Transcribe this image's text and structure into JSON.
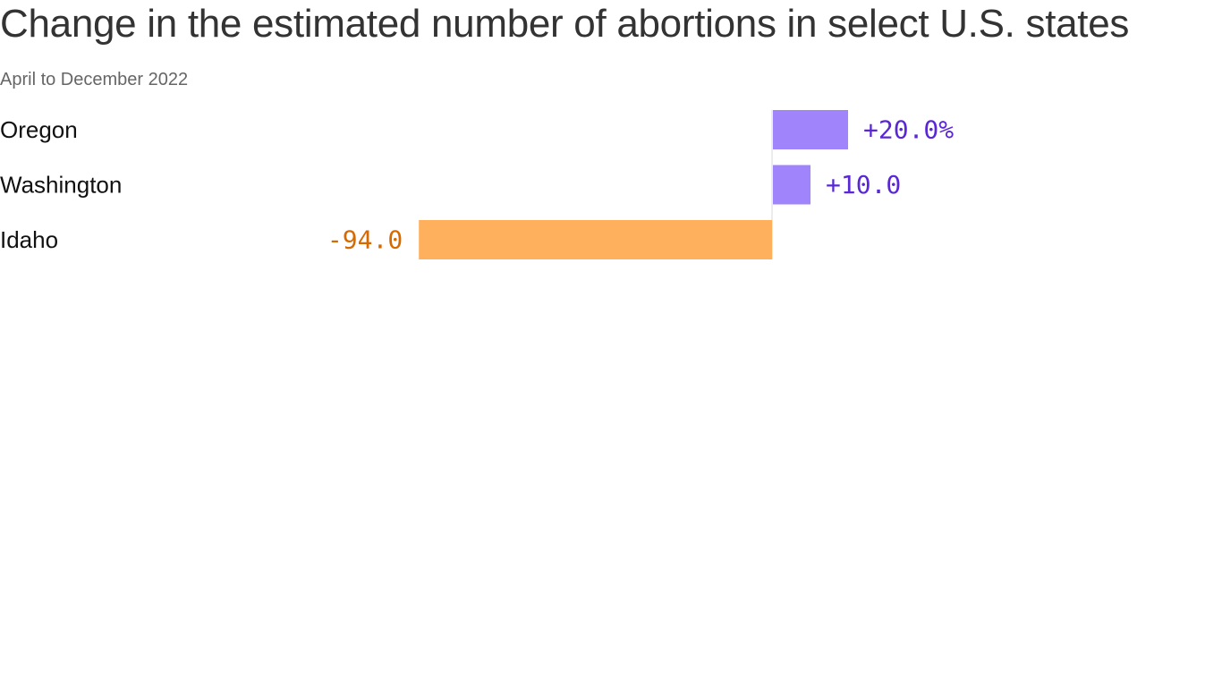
{
  "header": {
    "title": "Change in the estimated number of abortions in select U.S. states",
    "subtitle": "April to December 2022"
  },
  "colors": {
    "positive_bar": "#a084fc",
    "positive_text": "#5a27d6",
    "negative_bar": "#ffb05c",
    "negative_text": "#d66a00",
    "axis": "#d9d9d9"
  },
  "chart_data": {
    "type": "bar",
    "orientation": "horizontal",
    "categories": [
      "Oregon",
      "Washington",
      "Idaho"
    ],
    "values": [
      20.0,
      10.0,
      -94.0
    ],
    "value_labels": [
      "+20.0%",
      "+10.0",
      "-94.0"
    ],
    "title": "Change in the estimated number of abortions in select U.S. states",
    "subtitle": "April to December 2022",
    "grid": false,
    "legend": "none"
  }
}
